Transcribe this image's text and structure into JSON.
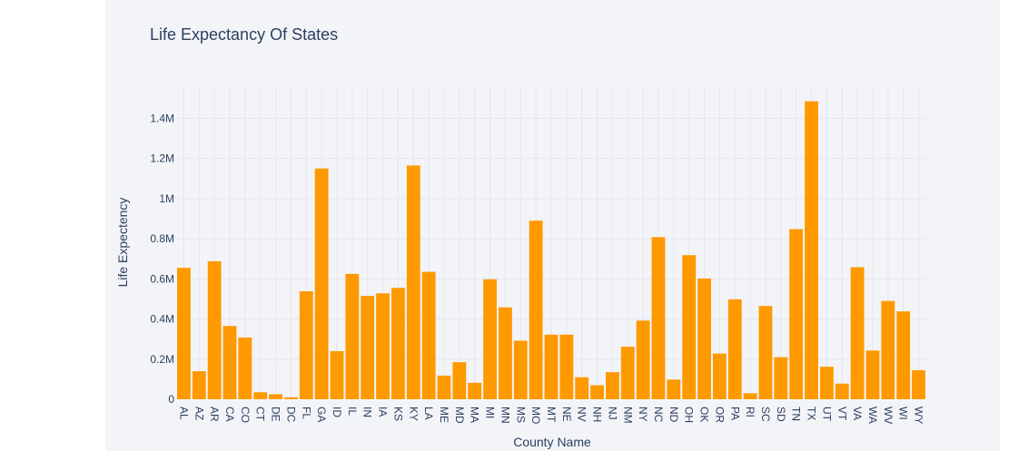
{
  "chart_data": {
    "type": "bar",
    "title": "Life Expectancy Of States",
    "xlabel": "County Name",
    "ylabel": "Life Expectency",
    "ylim": [
      0,
      1560000
    ],
    "yticks": [
      0,
      200000,
      400000,
      600000,
      800000,
      1000000,
      1200000,
      1400000
    ],
    "ytick_labels": [
      "0",
      "0.2M",
      "0.4M",
      "0.6M",
      "0.8M",
      "1M",
      "1.2M",
      "1.4M"
    ],
    "grid": true,
    "bar_color": "#ff9900",
    "background_color": "#f3f4f8",
    "categories": [
      "AL",
      "AZ",
      "AR",
      "CA",
      "CO",
      "CT",
      "DE",
      "DC",
      "FL",
      "GA",
      "ID",
      "IL",
      "IN",
      "IA",
      "KS",
      "KY",
      "LA",
      "ME",
      "MD",
      "MA",
      "MI",
      "MN",
      "MS",
      "MO",
      "MT",
      "NE",
      "NV",
      "NH",
      "NJ",
      "NM",
      "NY",
      "NC",
      "ND",
      "OH",
      "OK",
      "OR",
      "PA",
      "RI",
      "SC",
      "SD",
      "TN",
      "TX",
      "UT",
      "VT",
      "VA",
      "WA",
      "WV",
      "WI",
      "WY"
    ],
    "values": [
      655000,
      140000,
      688000,
      365000,
      308000,
      35000,
      25000,
      10000,
      538000,
      1150000,
      240000,
      625000,
      515000,
      528000,
      555000,
      1165000,
      635000,
      118000,
      185000,
      82000,
      598000,
      458000,
      292000,
      890000,
      322000,
      322000,
      110000,
      70000,
      135000,
      262000,
      392000,
      808000,
      98000,
      718000,
      602000,
      228000,
      498000,
      30000,
      465000,
      210000,
      848000,
      1485000,
      162000,
      78000,
      658000,
      243000,
      490000,
      438000,
      145000
    ]
  }
}
